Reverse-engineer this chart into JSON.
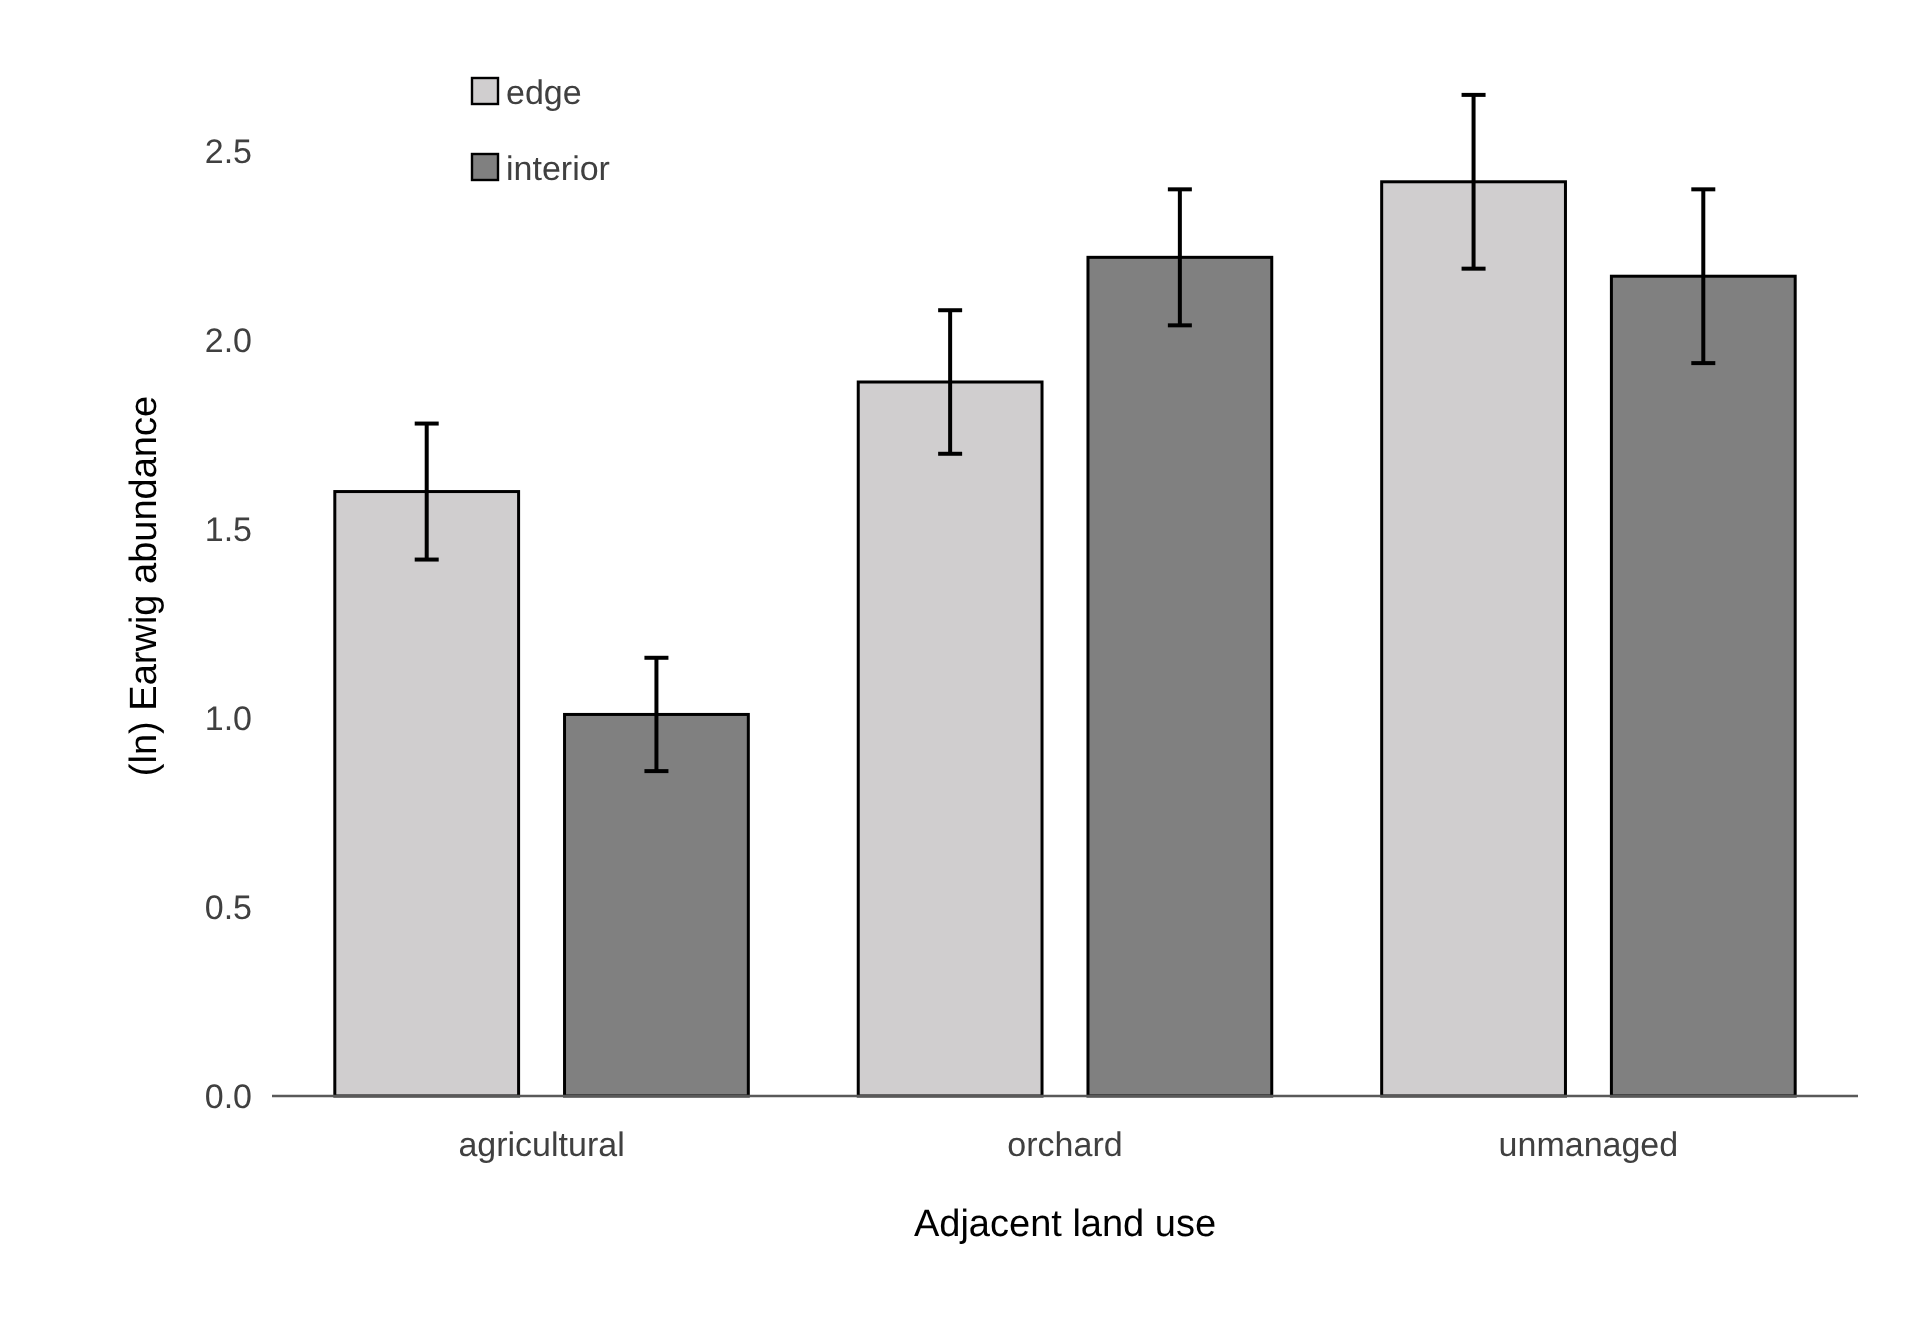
{
  "chart_data": {
    "type": "bar",
    "xlabel": "Adjacent land use",
    "ylabel": "(ln) Earwig abundance",
    "categories": [
      "agricultural",
      "orchard",
      "unmanaged"
    ],
    "series": [
      {
        "name": "edge",
        "color": "#d0cecf",
        "values": [
          1.6,
          1.89,
          2.42
        ],
        "errors": [
          0.18,
          0.19,
          0.23
        ]
      },
      {
        "name": "interior",
        "color": "#808080",
        "values": [
          1.01,
          2.22,
          2.17
        ],
        "errors": [
          0.15,
          0.18,
          0.23
        ]
      }
    ],
    "ylim": [
      0,
      2.7
    ],
    "yticks": [
      {
        "value": 0,
        "label": "0.0"
      },
      {
        "value": 0.5,
        "label": "0.5"
      },
      {
        "value": 1,
        "label": "1.0"
      },
      {
        "value": 1.5,
        "label": "1.5"
      },
      {
        "value": 2,
        "label": "2.0"
      },
      {
        "value": 2.5,
        "label": "2.5"
      }
    ],
    "grid": false,
    "legend": "top left"
  }
}
